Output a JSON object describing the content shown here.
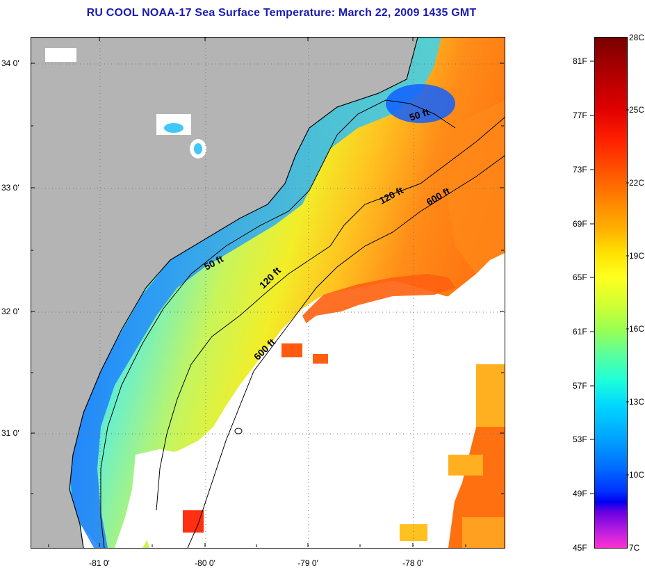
{
  "title": "RU COOL  NOAA-17  Sea Surface Temperature:  March 22, 2009 1435 GMT",
  "map": {
    "lat_labels": [
      "34 0'",
      "33 0'",
      "32 0'",
      "31 0'"
    ],
    "lon_labels": [
      "-81 0'",
      "-80 0'",
      "-79 0'",
      "-78 0'"
    ],
    "contour_labels": [
      "50 ft",
      "120 ft",
      "600 ft",
      "50 ft",
      "120 ft",
      "600 ft"
    ],
    "colors": {
      "land": "#b4b4b4",
      "cloud": "#ffffff",
      "contour": "#000000"
    }
  },
  "colorbar": {
    "fahrenheit": [
      "81F",
      "77F",
      "73F",
      "69F",
      "65F",
      "61F",
      "57F",
      "53F",
      "49F",
      "45F"
    ],
    "celsius": [
      "28C",
      "25C",
      "22C",
      "19C",
      "16C",
      "13C",
      "10C",
      "7C"
    ]
  }
}
